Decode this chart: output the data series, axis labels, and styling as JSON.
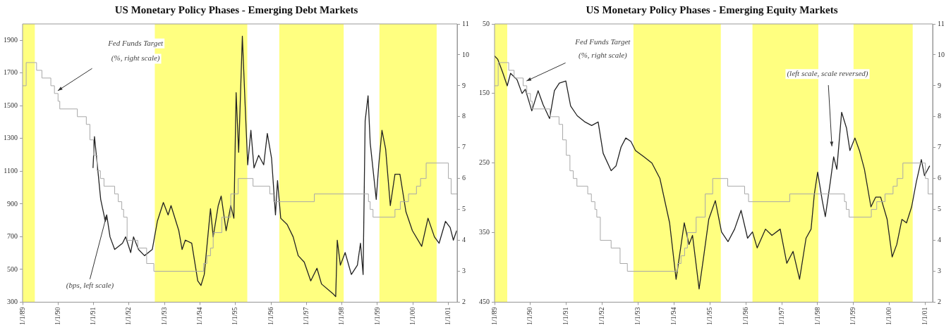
{
  "chart_data": [
    {
      "type": "line",
      "title": "US Monetary Policy Phases - Emerging Debt Markets",
      "xlim": [
        "1989-01-01",
        "2001-04-01"
      ],
      "xticks": [
        {
          "value": "1989-01-01",
          "label": "1/1/89"
        },
        {
          "value": "1990-01-01",
          "label": "1/1/90"
        },
        {
          "value": "1991-01-01",
          "label": "1/1/91"
        },
        {
          "value": "1992-01-01",
          "label": "1/1/92"
        },
        {
          "value": "1993-01-01",
          "label": "1/1/93"
        },
        {
          "value": "1994-01-01",
          "label": "1/1/94"
        },
        {
          "value": "1995-01-01",
          "label": "1/1/95"
        },
        {
          "value": "1996-01-01",
          "label": "1/1/96"
        },
        {
          "value": "1997-01-01",
          "label": "1/1/97"
        },
        {
          "value": "1998-01-01",
          "label": "1/1/98"
        },
        {
          "value": "1999-01-01",
          "label": "1/1/99"
        },
        {
          "value": "2000-01-01",
          "label": "1/1/00"
        },
        {
          "value": "2001-01-01",
          "label": "1/1/01"
        }
      ],
      "ylim": [
        300,
        2000
      ],
      "yticks": [
        300,
        500,
        700,
        900,
        1100,
        1300,
        1500,
        1700,
        1900
      ],
      "y2lim": [
        2,
        11
      ],
      "y2ticks": [
        2,
        3,
        4,
        5,
        6,
        7,
        8,
        9,
        10,
        11
      ],
      "grid": false,
      "legend": false,
      "marker": "none",
      "bands": [
        {
          "axis": "x",
          "from": "1989-01-01",
          "to": "1989-05-07",
          "color": "#ffff80"
        },
        {
          "axis": "x",
          "from": "1992-09-23",
          "to": "1995-05-03",
          "color": "#ffff80"
        },
        {
          "axis": "x",
          "from": "1996-03-27",
          "to": "1998-01-19",
          "color": "#ffff80"
        },
        {
          "axis": "x",
          "from": "1999-01-22",
          "to": "2000-09-02",
          "color": "#ffff80"
        }
      ],
      "annotations": [
        "Fed Funds Target",
        "(%, right scale)",
        {
          "text": "(bps, left scale)",
          "x": "1991-05-17",
          "y": 833
        }
      ],
      "series": [
        {
          "type": "step",
          "axis": "y2",
          "color": "#a8a8a8",
          "x": [
            "1989-01-01",
            "1989-02-07",
            "1989-05-25",
            "1989-07-19",
            "1989-10-19",
            "1989-11-25",
            "1990-01-01",
            "1990-01-19",
            "1990-07-19",
            "1990-10-19",
            "1990-11-25",
            "1991-01-01",
            "1991-02-07",
            "1991-03-13",
            "1991-04-19",
            "1991-08-07",
            "1991-09-13",
            "1991-10-19",
            "1991-11-07",
            "1991-12-13",
            "1992-04-01",
            "1992-07-01",
            "1992-09-13",
            "1994-02-07",
            "1994-03-13",
            "1994-04-19",
            "1994-05-17",
            "1994-08-14",
            "1994-11-14",
            "1995-01-29",
            "1995-07-01",
            "1995-12-20",
            "1996-01-29",
            "1997-03-23",
            "1998-10-01",
            "1998-10-19",
            "1998-11-17",
            "1999-07-01",
            "1999-08-25",
            "1999-11-17",
            "2000-02-07",
            "2000-03-20",
            "2000-05-17",
            "2001-01-01",
            "2001-01-29",
            "2001-04-01"
          ],
          "values": [
            9.0,
            9.75,
            9.5,
            9.25,
            9.0,
            8.75,
            8.5,
            8.25,
            8.0,
            7.75,
            7.25,
            6.75,
            6.25,
            6.0,
            5.75,
            5.5,
            5.25,
            5.0,
            4.75,
            4.0,
            3.75,
            3.25,
            3.0,
            3.25,
            3.5,
            3.75,
            4.25,
            4.75,
            5.5,
            6.0,
            5.75,
            5.5,
            5.25,
            5.5,
            5.25,
            5.0,
            4.75,
            5.0,
            5.25,
            5.5,
            5.75,
            6.0,
            6.5,
            6.0,
            5.5,
            5.5
          ]
        },
        {
          "type": "line",
          "color": "#222222",
          "x": [
            "1990-12-27",
            "1991-01-11",
            "1991-02-14",
            "1991-03-16",
            "1991-05-03",
            "1991-05-17",
            "1991-06-20",
            "1991-08-07",
            "1991-10-26",
            "1991-11-28",
            "1992-01-19",
            "1992-02-17",
            "1992-04-08",
            "1992-06-09",
            "1992-08-28",
            "1992-10-19",
            "1992-12-20",
            "1993-02-07",
            "1993-03-09",
            "1993-05-28",
            "1993-07-01",
            "1993-08-03",
            "1993-10-08",
            "1993-12-09",
            "1994-01-11",
            "1994-02-14",
            "1994-04-19",
            "1994-05-17",
            "1994-07-08",
            "1994-08-07",
            "1994-09-27",
            "1994-11-14",
            "1994-12-16",
            "1995-01-08",
            "1995-02-03",
            "1995-03-13",
            "1995-04-11",
            "1995-05-07",
            "1995-06-09",
            "1995-07-11",
            "1995-08-28",
            "1995-10-19",
            "1995-11-25",
            "1996-01-08",
            "1996-02-17",
            "1996-03-09",
            "1996-04-11",
            "1996-06-16",
            "1996-08-17",
            "1996-10-08",
            "1996-12-09",
            "1997-02-14",
            "1997-04-19",
            "1997-06-05",
            "1997-09-27",
            "1997-10-29",
            "1997-11-14",
            "1997-12-16",
            "1998-02-03",
            "1998-04-08",
            "1998-06-09",
            "1998-07-11",
            "1998-08-07",
            "1998-08-28",
            "1998-09-27",
            "1998-10-19",
            "1998-12-20",
            "1999-01-15",
            "1999-02-17",
            "1999-03-27",
            "1999-05-14",
            "1999-07-01",
            "1999-08-21",
            "1999-10-22",
            "1999-12-27",
            "2000-04-01",
            "2000-06-05",
            "2000-08-10",
            "2000-09-27",
            "2000-12-02",
            "2001-01-19",
            "2001-02-21",
            "2001-03-27"
          ],
          "values": [
            1120,
            1312,
            1110,
            928,
            794,
            833,
            699,
            622,
            660,
            699,
            603,
            699,
            622,
            584,
            622,
            794,
            909,
            833,
            890,
            737,
            622,
            679,
            660,
            430,
            402,
            469,
            871,
            699,
            890,
            948,
            737,
            890,
            813,
            1580,
            1216,
            1925,
            1503,
            1139,
            1350,
            1120,
            1197,
            1139,
            1331,
            1178,
            833,
            1043,
            813,
            775,
            699,
            584,
            545,
            430,
            507,
            411,
            354,
            334,
            679,
            526,
            603,
            469,
            526,
            660,
            469,
            1407,
            1561,
            1273,
            928,
            1139,
            1350,
            1235,
            890,
            1082,
            1082,
            852,
            737,
            641,
            813,
            699,
            660,
            794,
            756,
            679,
            737
          ]
        }
      ]
    },
    {
      "type": "line",
      "title": "US Monetary Policy Phases - Emerging Equity Markets",
      "xlim": [
        "1989-01-01",
        "2001-03-16"
      ],
      "xticks": [
        {
          "value": "1989-01-01",
          "label": "1/1/89"
        },
        {
          "value": "1990-01-01",
          "label": "1/1/90"
        },
        {
          "value": "1991-01-01",
          "label": "1/1/91"
        },
        {
          "value": "1992-01-01",
          "label": "1/1/92"
        },
        {
          "value": "1993-01-01",
          "label": "1/1/93"
        },
        {
          "value": "1994-01-01",
          "label": "1/1/94"
        },
        {
          "value": "1995-01-01",
          "label": "1/1/95"
        },
        {
          "value": "1996-01-01",
          "label": "1/1/96"
        },
        {
          "value": "1997-01-01",
          "label": "1/1/97"
        },
        {
          "value": "1998-01-01",
          "label": "1/1/98"
        },
        {
          "value": "1999-01-01",
          "label": "1/1/99"
        },
        {
          "value": "2000-01-01",
          "label": "1/1/00"
        },
        {
          "value": "2001-01-01",
          "label": "1/1/01"
        }
      ],
      "ylim": [
        450,
        50
      ],
      "yticks": [
        50,
        150,
        250,
        350,
        450
      ],
      "y2lim": [
        2,
        11
      ],
      "y2ticks": [
        2,
        3,
        4,
        5,
        6,
        7,
        8,
        9,
        10,
        11
      ],
      "grid": false,
      "legend": false,
      "marker": "none",
      "bands": [
        {
          "axis": "x",
          "from": "1989-01-01",
          "to": "1989-05-10",
          "color": "#ffff80"
        },
        {
          "axis": "x",
          "from": "1992-11-14",
          "to": "1995-04-22",
          "color": "#ffff80"
        },
        {
          "axis": "x",
          "from": "1996-03-09",
          "to": "1998-01-08",
          "color": "#ffff80"
        },
        {
          "axis": "x",
          "from": "1999-01-01",
          "to": "2000-08-25",
          "color": "#ffff80"
        }
      ],
      "annotations": [
        "Fed Funds Target",
        "(%, right scale)",
        "(left scale, scale reversed)"
      ],
      "series": [
        {
          "type": "step",
          "axis": "y2",
          "color": "#a8a8a8",
          "x": [
            "1989-01-01",
            "1989-02-07",
            "1989-05-25",
            "1989-07-19",
            "1989-10-19",
            "1989-11-25",
            "1990-01-01",
            "1990-01-19",
            "1990-07-19",
            "1990-10-19",
            "1990-11-25",
            "1991-01-01",
            "1991-02-07",
            "1991-03-13",
            "1991-04-19",
            "1991-08-07",
            "1991-09-13",
            "1991-10-19",
            "1991-11-07",
            "1991-12-13",
            "1992-04-01",
            "1992-07-01",
            "1992-09-13",
            "1994-02-07",
            "1994-03-13",
            "1994-04-19",
            "1994-05-17",
            "1994-08-14",
            "1994-11-14",
            "1995-01-29",
            "1995-07-01",
            "1995-12-20",
            "1996-01-29",
            "1997-03-23",
            "1998-10-01",
            "1998-10-19",
            "1998-11-17",
            "1999-07-01",
            "1999-08-25",
            "1999-11-17",
            "2000-02-07",
            "2000-03-20",
            "2000-05-17",
            "2001-01-01",
            "2001-01-29",
            "2001-03-16"
          ],
          "values": [
            9.0,
            9.75,
            9.5,
            9.25,
            9.0,
            8.75,
            8.5,
            8.25,
            8.0,
            7.75,
            7.25,
            6.75,
            6.25,
            6.0,
            5.75,
            5.5,
            5.25,
            5.0,
            4.75,
            4.0,
            3.75,
            3.25,
            3.0,
            3.25,
            3.5,
            3.75,
            4.25,
            4.75,
            5.5,
            6.0,
            5.75,
            5.5,
            5.25,
            5.5,
            5.25,
            5.0,
            4.75,
            5.0,
            5.25,
            5.5,
            5.75,
            6.0,
            6.5,
            6.0,
            5.5,
            5.5
          ]
        },
        {
          "type": "line",
          "color": "#222222",
          "x": [
            "1989-01-01",
            "1989-02-03",
            "1989-03-23",
            "1989-05-10",
            "1989-06-13",
            "1989-08-17",
            "1989-10-08",
            "1989-11-10",
            "1990-01-15",
            "1990-03-20",
            "1990-05-10",
            "1990-07-15",
            "1990-09-02",
            "1990-10-22",
            "1990-12-27",
            "1991-02-14",
            "1991-04-22",
            "1991-07-11",
            "1991-09-16",
            "1991-11-21",
            "1992-01-11",
            "1992-04-01",
            "1992-05-21",
            "1992-07-11",
            "1992-08-28",
            "1992-10-19",
            "1992-12-05",
            "1993-02-28",
            "1993-05-21",
            "1993-08-10",
            "1993-11-17",
            "1994-01-22",
            "1994-04-15",
            "1994-06-02",
            "1994-07-08",
            "1994-09-13",
            "1994-10-29",
            "1994-12-20",
            "1995-02-25",
            "1995-04-29",
            "1995-07-04",
            "1995-09-09",
            "1995-11-14",
            "1996-01-19",
            "1996-03-09",
            "1996-04-26",
            "1996-07-19",
            "1996-09-23",
            "1996-12-16",
            "1997-02-21",
            "1997-04-26",
            "1997-07-01",
            "1997-09-05",
            "1997-10-26",
            "1997-11-28",
            "1998-01-01",
            "1998-02-17",
            "1998-03-20",
            "1998-05-10",
            "1998-06-13",
            "1998-07-15",
            "1998-09-02",
            "1998-10-22",
            "1998-11-25",
            "1999-01-15",
            "1999-03-02",
            "1999-04-22",
            "1999-06-27",
            "1999-08-14",
            "1999-10-04",
            "1999-12-09",
            "2000-01-29",
            "2000-03-16",
            "2000-05-07",
            "2000-06-23",
            "2000-08-14",
            "2000-10-01",
            "2000-11-21",
            "2000-12-23",
            "2001-02-14"
          ],
          "values": [
            96,
            101,
            119,
            139,
            121,
            130,
            150,
            144,
            175,
            146,
            166,
            186,
            146,
            135,
            132,
            168,
            182,
            191,
            196,
            191,
            236,
            261,
            254,
            227,
            214,
            219,
            232,
            241,
            250,
            272,
            336,
            417,
            336,
            367,
            354,
            431,
            385,
            331,
            304,
            349,
            363,
            345,
            318,
            358,
            349,
            372,
            345,
            354,
            345,
            394,
            377,
            417,
            358,
            345,
            295,
            263,
            304,
            327,
            277,
            241,
            259,
            177,
            200,
            232,
            214,
            232,
            259,
            313,
            299,
            299,
            331,
            385,
            367,
            331,
            336,
            313,
            277,
            245,
            268,
            254
          ]
        }
      ]
    }
  ]
}
